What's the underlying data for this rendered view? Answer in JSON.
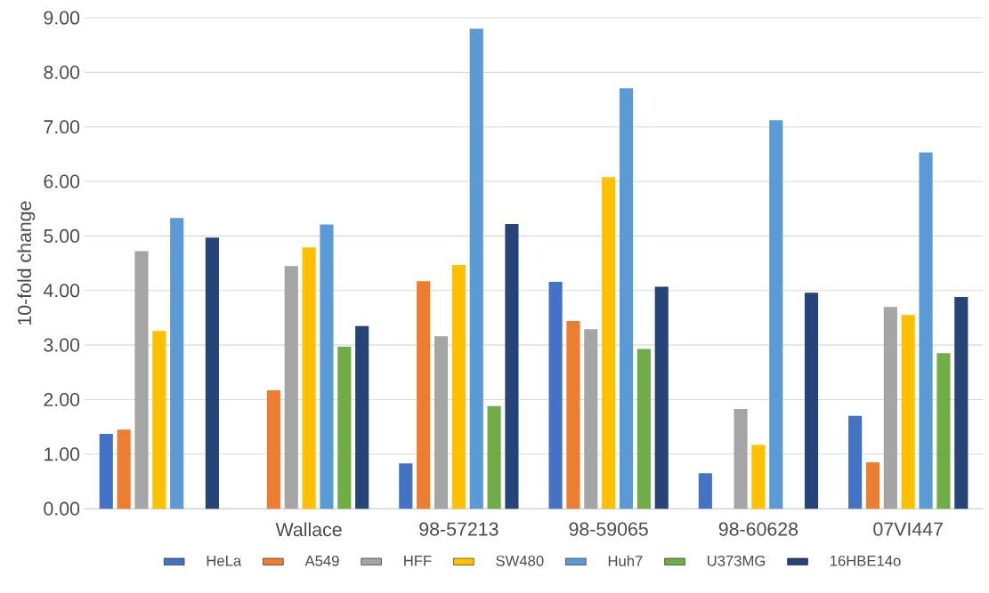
{
  "chart_data": {
    "type": "bar",
    "ylabel": "10-fold change",
    "categories": [
      null,
      "Wallace",
      "98-57213",
      "98-59065",
      "98-60628",
      "07VI447"
    ],
    "series": [
      {
        "name": "HeLa",
        "color": "#4472c4",
        "values": [
          1.37,
          null,
          0.83,
          4.16,
          0.65,
          1.7
        ]
      },
      {
        "name": "A549",
        "color": "#ed7d31",
        "values": [
          1.45,
          2.17,
          4.17,
          3.44,
          null,
          0.85
        ]
      },
      {
        "name": "HFF",
        "color": "#a5a5a5",
        "values": [
          4.72,
          4.45,
          3.16,
          3.29,
          1.83,
          3.7
        ]
      },
      {
        "name": "SW480",
        "color": "#ffc000",
        "values": [
          3.26,
          4.79,
          4.47,
          6.08,
          1.17,
          3.55
        ]
      },
      {
        "name": "Huh7",
        "color": "#5b9bd5",
        "values": [
          5.33,
          5.21,
          8.8,
          7.71,
          7.12,
          6.53
        ]
      },
      {
        "name": "U373MG",
        "color": "#70ad47",
        "values": [
          null,
          2.97,
          1.88,
          2.93,
          null,
          2.85
        ]
      },
      {
        "name": "16HBE14o",
        "color": "#264478",
        "values": [
          4.97,
          3.35,
          5.22,
          4.07,
          3.96,
          3.88
        ]
      }
    ],
    "ylim": [
      0,
      9
    ],
    "yticks": [
      {
        "value": 0,
        "label": "0.00"
      },
      {
        "value": 1,
        "label": "1.00"
      },
      {
        "value": 2,
        "label": "2.00"
      },
      {
        "value": 3,
        "label": "3.00"
      },
      {
        "value": 4,
        "label": "4.00"
      },
      {
        "value": 5,
        "label": "5.00"
      },
      {
        "value": 6,
        "label": "6.00"
      },
      {
        "value": 7,
        "label": "7.00"
      },
      {
        "value": 8,
        "label": "8.00"
      },
      {
        "value": 9,
        "label": "9.00"
      }
    ],
    "grid": "y",
    "legend": "bottom"
  }
}
